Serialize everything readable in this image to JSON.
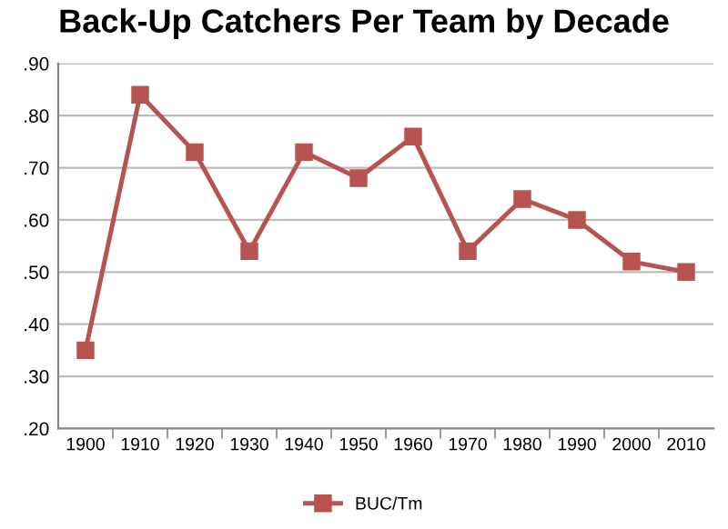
{
  "chart_data": {
    "type": "line",
    "title": "Back-Up Catchers Per Team by Decade",
    "categories": [
      "1900",
      "1910",
      "1920",
      "1930",
      "1940",
      "1950",
      "1960",
      "1970",
      "1980",
      "1990",
      "2000",
      "2010"
    ],
    "series": [
      {
        "name": "BUC/Tm",
        "color": "#b85450",
        "values": [
          0.35,
          0.84,
          0.73,
          0.54,
          0.73,
          0.68,
          0.76,
          0.54,
          0.64,
          0.6,
          0.52,
          0.5
        ]
      }
    ],
    "ylim": [
      0.2,
      0.9
    ],
    "yticks": [
      {
        "value": 0.2,
        "label": ".20"
      },
      {
        "value": 0.3,
        "label": ".30"
      },
      {
        "value": 0.4,
        "label": ".40"
      },
      {
        "value": 0.5,
        "label": ".50"
      },
      {
        "value": 0.6,
        "label": ".60"
      },
      {
        "value": 0.7,
        "label": ".70"
      },
      {
        "value": 0.8,
        "label": ".80"
      },
      {
        "value": 0.9,
        "label": ".90"
      }
    ],
    "grid": "y",
    "legend": "bottom",
    "marker": "square",
    "line_style": "solid"
  }
}
